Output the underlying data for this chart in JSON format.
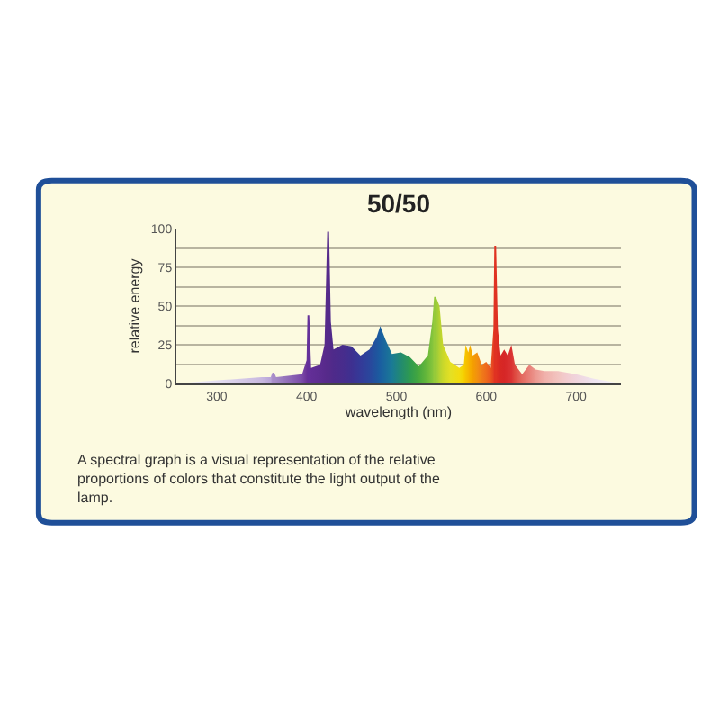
{
  "chart_data": {
    "type": "area",
    "title": "50/50",
    "xlabel": "wavelength (nm)",
    "ylabel": "relative energy",
    "annotations": [
      "A spectral graph is a visual representation of the relative proportions of colors that constitute the light output of the lamp."
    ],
    "xlim": [
      255,
      750
    ],
    "xticks": [
      300,
      400,
      500,
      600,
      700
    ],
    "ylim": [
      0,
      100
    ],
    "yticks": [
      0,
      {
        "value": 12.5,
        "label": null
      },
      25,
      {
        "value": 37.5,
        "label": null
      },
      50,
      {
        "value": 62.5,
        "label": null
      },
      75,
      {
        "value": 87.5,
        "label": null
      },
      100
    ],
    "grid": "y",
    "series": [
      {
        "x": [
          255,
          300,
          350,
          360,
          362,
          364,
          366,
          395,
          400,
          401,
          403,
          405,
          415,
          420,
          423,
          425,
          427,
          430,
          440,
          450,
          460,
          470,
          478,
          482,
          488,
          495,
          505,
          515,
          525,
          535,
          540,
          542,
          544,
          548,
          552,
          560,
          570,
          575,
          577,
          580,
          582,
          585,
          590,
          595,
          600,
          605,
          608,
          609,
          611,
          613,
          616,
          620,
          624,
          628,
          632,
          640,
          648,
          655,
          665,
          680,
          690,
          700,
          720,
          750
        ],
        "values": [
          0,
          2,
          4,
          4,
          7,
          7,
          4,
          6,
          15,
          44,
          44,
          10,
          12,
          25,
          98,
          98,
          40,
          22,
          25,
          24,
          18,
          22,
          30,
          37,
          28,
          19,
          20,
          17,
          11,
          18,
          40,
          56,
          56,
          50,
          25,
          14,
          10,
          12,
          25,
          20,
          25,
          18,
          20,
          12,
          14,
          10,
          35,
          89,
          89,
          35,
          18,
          22,
          18,
          25,
          12,
          6,
          12,
          9,
          8,
          8,
          7,
          6,
          3,
          0
        ],
        "colors": [
          "#f4f2f8",
          "#e4def0",
          "#c8b8e0",
          "#b8a4d8",
          "#a88cc8",
          "#a88cc8",
          "#a48ac6",
          "#7a4aa8",
          "#6a3498",
          "#64309a",
          "#64309a",
          "#622e96",
          "#5c2c90",
          "#582a8c",
          "#552a8a",
          "#552a8a",
          "#522a8a",
          "#4e2a8a",
          "#482c8c",
          "#3e3090",
          "#343a98",
          "#2a469c",
          "#1f559e",
          "#1a5ea0",
          "#1a6a9c",
          "#1a7a96",
          "#228a70",
          "#2e9a50",
          "#46a83e",
          "#6cba3a",
          "#84c43c",
          "#96ca3a",
          "#96ca3a",
          "#b4d232",
          "#cad82a",
          "#e4e024",
          "#f2dc10",
          "#f6d000",
          "#f6c400",
          "#f6b800",
          "#f6ac00",
          "#f4a000",
          "#f29010",
          "#f07c18",
          "#ee6a1c",
          "#ea5420",
          "#e44022",
          "#e03222",
          "#e03222",
          "#dc2c22",
          "#d82824",
          "#d62626",
          "#d82c2c",
          "#da3232",
          "#de4a40",
          "#e46a60",
          "#e88078",
          "#ec9890",
          "#f0b0aa",
          "#f2c4c0",
          "#f2ccd0",
          "#f0d4dc",
          "#eee4f0",
          "#f6f4fa"
        ]
      }
    ]
  }
}
